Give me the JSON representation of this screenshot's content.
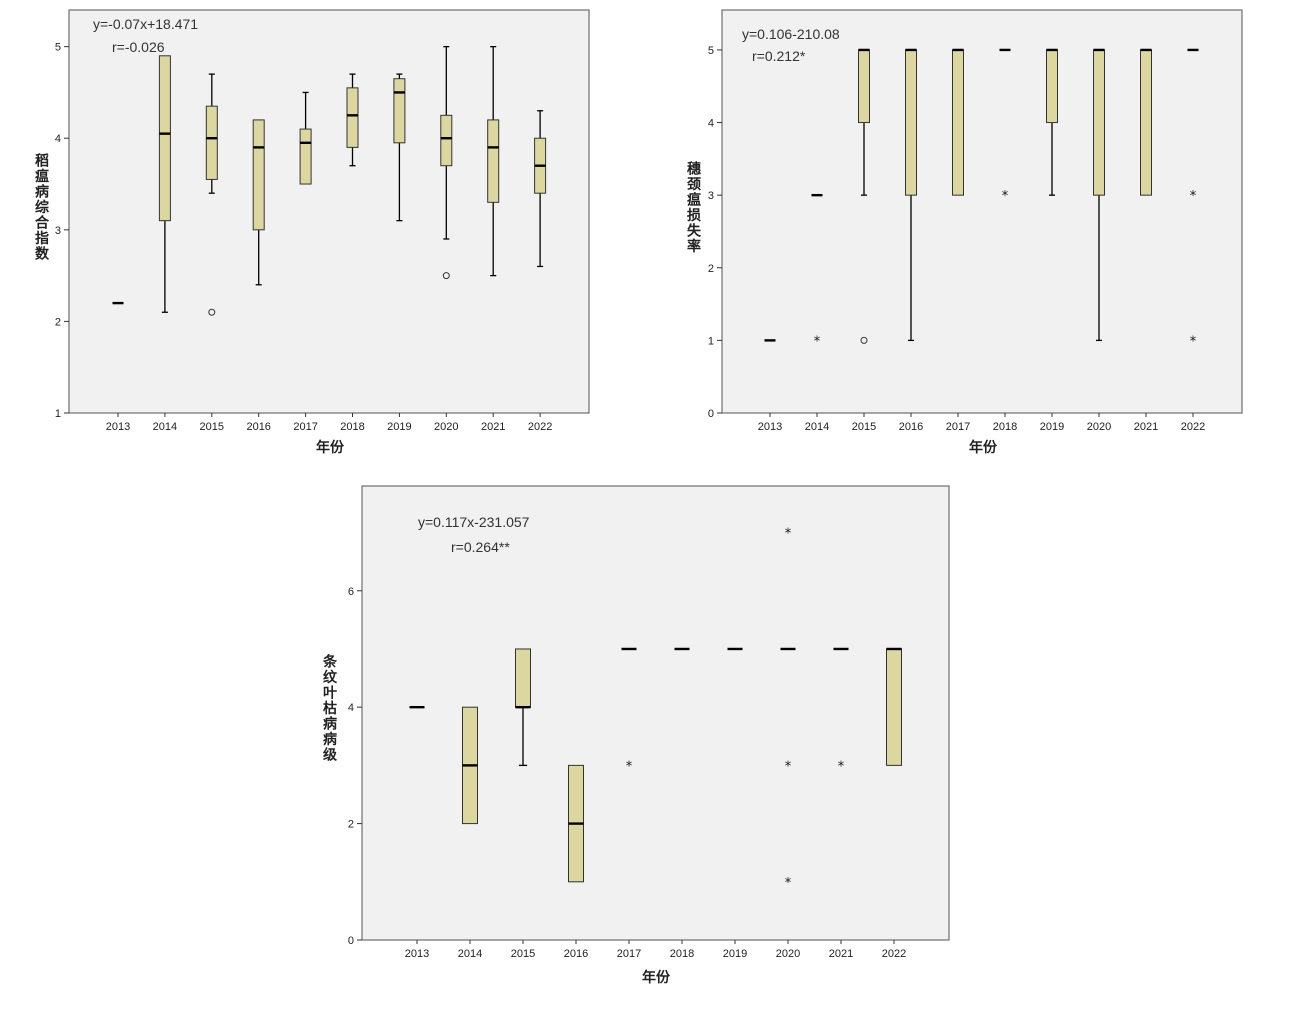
{
  "chart_data": [
    {
      "type": "box",
      "annotation": [
        "y=-0.07x+18.471",
        "r=-0.026"
      ],
      "xlabel": "年份",
      "ylabel": "稻瘟病综合指数",
      "categories": [
        "2013",
        "2014",
        "2015",
        "2016",
        "2017",
        "2018",
        "2019",
        "2020",
        "2021",
        "2022"
      ],
      "ylim": [
        1,
        5.4
      ],
      "yticks": [
        1,
        2,
        3,
        4,
        5
      ],
      "grid": false,
      "boxes": [
        {
          "min": 2.2,
          "q1": 2.2,
          "median": 2.2,
          "q3": 2.2,
          "max": 2.2
        },
        {
          "min": 2.1,
          "q1": 3.1,
          "median": 4.05,
          "q3": 4.9,
          "max": 4.9
        },
        {
          "min": 3.4,
          "q1": 3.55,
          "median": 4.0,
          "q3": 4.35,
          "max": 4.7
        },
        {
          "min": 2.4,
          "q1": 3.0,
          "median": 3.9,
          "q3": 4.2,
          "max": 4.2
        },
        {
          "min": 3.5,
          "q1": 3.5,
          "median": 3.95,
          "q3": 4.1,
          "max": 4.5
        },
        {
          "min": 3.7,
          "q1": 3.9,
          "median": 4.25,
          "q3": 4.55,
          "max": 4.7
        },
        {
          "min": 3.1,
          "q1": 3.95,
          "median": 4.5,
          "q3": 4.65,
          "max": 4.7
        },
        {
          "min": 2.9,
          "q1": 3.7,
          "median": 4.0,
          "q3": 4.25,
          "max": 5.0
        },
        {
          "min": 2.5,
          "q1": 3.3,
          "median": 3.9,
          "q3": 4.2,
          "max": 5.0
        },
        {
          "min": 2.6,
          "q1": 3.4,
          "median": 3.7,
          "q3": 4.0,
          "max": 4.3
        }
      ],
      "outliers": [
        {
          "category": "2015",
          "value": 2.1,
          "marker": "circle"
        },
        {
          "category": "2020",
          "value": 2.5,
          "marker": "circle"
        }
      ]
    },
    {
      "type": "box",
      "annotation": [
        "y=0.106-210.08",
        "r=0.212*"
      ],
      "xlabel": "年份",
      "ylabel": "穗颈瘟损失率",
      "categories": [
        "2013",
        "2014",
        "2015",
        "2016",
        "2017",
        "2018",
        "2019",
        "2020",
        "2021",
        "2022"
      ],
      "ylim": [
        0,
        5.55
      ],
      "yticks": [
        0,
        1,
        2,
        3,
        4,
        5
      ],
      "grid": false,
      "boxes": [
        {
          "min": 1,
          "q1": 1,
          "median": 1,
          "q3": 1,
          "max": 1
        },
        {
          "min": 3,
          "q1": 3,
          "median": 3,
          "q3": 3,
          "max": 3
        },
        {
          "min": 3,
          "q1": 4,
          "median": 5,
          "q3": 5,
          "max": 5
        },
        {
          "min": 1,
          "q1": 3,
          "median": 5,
          "q3": 5,
          "max": 5
        },
        {
          "min": 3,
          "q1": 3,
          "median": 5,
          "q3": 5,
          "max": 5
        },
        {
          "min": 5,
          "q1": 5,
          "median": 5,
          "q3": 5,
          "max": 5
        },
        {
          "min": 3,
          "q1": 4,
          "median": 5,
          "q3": 5,
          "max": 5
        },
        {
          "min": 1,
          "q1": 3,
          "median": 5,
          "q3": 5,
          "max": 5
        },
        {
          "min": 3,
          "q1": 3,
          "median": 5,
          "q3": 5,
          "max": 5
        },
        {
          "min": 5,
          "q1": 5,
          "median": 5,
          "q3": 5,
          "max": 5
        }
      ],
      "outliers": [
        {
          "category": "2014",
          "value": 1,
          "marker": "star"
        },
        {
          "category": "2015",
          "value": 1,
          "marker": "circle"
        },
        {
          "category": "2018",
          "value": 3,
          "marker": "star"
        },
        {
          "category": "2022",
          "value": 3,
          "marker": "star"
        },
        {
          "category": "2022",
          "value": 1,
          "marker": "star"
        }
      ]
    },
    {
      "type": "box",
      "annotation": [
        "y=0.117x-231.057",
        "r=0.264**"
      ],
      "xlabel": "年份",
      "ylabel": "条纹叶枯病病级",
      "categories": [
        "2013",
        "2014",
        "2015",
        "2016",
        "2017",
        "2018",
        "2019",
        "2020",
        "2021",
        "2022"
      ],
      "ylim": [
        0,
        7.8
      ],
      "yticks": [
        0,
        2,
        4,
        6
      ],
      "grid": false,
      "boxes": [
        {
          "min": 4,
          "q1": 4,
          "median": 4,
          "q3": 4,
          "max": 4
        },
        {
          "min": 2,
          "q1": 2,
          "median": 3,
          "q3": 4,
          "max": 4
        },
        {
          "min": 3,
          "q1": 4,
          "median": 4,
          "q3": 5,
          "max": 5
        },
        {
          "min": 1,
          "q1": 1,
          "median": 2,
          "q3": 3,
          "max": 3
        },
        {
          "min": 5,
          "q1": 5,
          "median": 5,
          "q3": 5,
          "max": 5
        },
        {
          "min": 5,
          "q1": 5,
          "median": 5,
          "q3": 5,
          "max": 5
        },
        {
          "min": 5,
          "q1": 5,
          "median": 5,
          "q3": 5,
          "max": 5
        },
        {
          "min": 5,
          "q1": 5,
          "median": 5,
          "q3": 5,
          "max": 5
        },
        {
          "min": 5,
          "q1": 5,
          "median": 5,
          "q3": 5,
          "max": 5
        },
        {
          "min": 3,
          "q1": 3,
          "median": 5,
          "q3": 5,
          "max": 5
        }
      ],
      "outliers": [
        {
          "category": "2017",
          "value": 3,
          "marker": "star"
        },
        {
          "category": "2020",
          "value": 7,
          "marker": "star"
        },
        {
          "category": "2020",
          "value": 3,
          "marker": "star"
        },
        {
          "category": "2020",
          "value": 1,
          "marker": "star"
        },
        {
          "category": "2021",
          "value": 3,
          "marker": "star"
        }
      ]
    }
  ],
  "colors": {
    "box_fill": "#dcd6a0",
    "plot_bg": "#f1f1f1",
    "frame": "#6e6e6e",
    "line": "#000000"
  }
}
